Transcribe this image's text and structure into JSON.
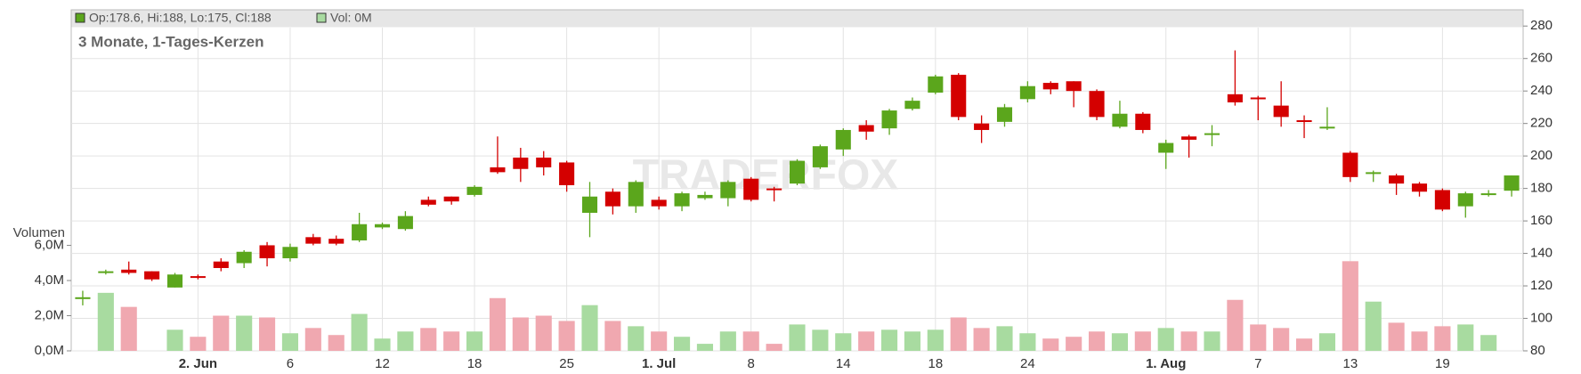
{
  "chart_data": {
    "type": "candlestick",
    "title": "3 Monate, 1-Tages-Kerzen",
    "legend_price": "Op:178.6, Hi:188, Lo:175, Cl:188",
    "legend_volume": "Vol: 0M",
    "volume_label": "Volumen",
    "watermark": "TRADERFOX",
    "up_color": "#5ba61c",
    "down_color": "#d40000",
    "volume_up_color": "#a8dba0",
    "volume_down_color": "#f0a8b0",
    "grid": true,
    "categories": [
      null,
      null,
      null,
      null,
      null,
      "2. Jun",
      null,
      null,
      null,
      "6",
      null,
      null,
      null,
      "12",
      null,
      null,
      null,
      "18",
      null,
      null,
      null,
      "25",
      null,
      null,
      null,
      "1. Jul",
      null,
      null,
      null,
      "8",
      null,
      null,
      null,
      "14",
      null,
      null,
      null,
      "18",
      null,
      null,
      null,
      "24",
      null,
      null,
      null,
      null,
      null,
      "1. Aug",
      null,
      null,
      null,
      "7",
      null,
      null,
      null,
      "13",
      null,
      null,
      null,
      "19",
      null,
      null,
      null
    ],
    "open": [
      112.5,
      128,
      130,
      129,
      119,
      126,
      135,
      134,
      145,
      137,
      150,
      149,
      148,
      156,
      155,
      173,
      175,
      176,
      193,
      199,
      199,
      196,
      165,
      178,
      169,
      173,
      169,
      174,
      174,
      186,
      180,
      183,
      193,
      204,
      219,
      217,
      229,
      239,
      250,
      220,
      221,
      235,
      245,
      246,
      240,
      218,
      226,
      202,
      212,
      213,
      238,
      236,
      231,
      222,
      217,
      202,
      189,
      188,
      183,
      179,
      169,
      176,
      178.6
    ],
    "high": [
      117,
      130,
      135,
      129,
      128,
      127,
      137,
      142,
      147,
      146,
      152,
      151,
      165,
      159,
      166,
      175,
      175,
      182,
      212,
      205,
      203,
      197,
      184,
      180,
      185,
      175,
      178,
      178,
      185,
      187,
      181,
      198,
      207,
      217,
      222,
      229,
      236,
      250,
      251,
      225,
      232,
      246,
      246,
      246,
      241,
      234,
      227,
      210,
      213,
      219,
      265,
      237,
      246,
      225,
      230,
      203,
      191,
      189,
      184,
      180,
      178,
      179,
      188
    ],
    "low": [
      108,
      127,
      127,
      123,
      119,
      124,
      129,
      131,
      132,
      135,
      145,
      145,
      147,
      155,
      154,
      169,
      170,
      175,
      189,
      184,
      188,
      178,
      150,
      164,
      165,
      167,
      166,
      173,
      169,
      172,
      172,
      182,
      192,
      200,
      210,
      213,
      228,
      238,
      222,
      208,
      218,
      233,
      238,
      230,
      222,
      217,
      214,
      192,
      199,
      206,
      231,
      222,
      218,
      211,
      216,
      184,
      184,
      176,
      175,
      166,
      162,
      175,
      175
    ],
    "close": [
      113,
      129,
      128,
      124,
      127,
      125,
      131,
      141,
      137,
      144,
      146,
      146,
      158,
      158,
      163,
      170,
      172,
      181,
      190,
      192,
      193,
      182,
      175,
      169,
      184,
      169,
      177,
      176,
      184,
      173,
      179,
      197,
      206,
      216,
      215,
      228,
      234,
      249,
      224,
      216,
      230,
      243,
      241,
      240,
      224,
      226,
      216,
      208,
      210,
      214,
      233,
      235,
      224,
      221,
      218,
      187,
      190,
      183,
      178,
      167,
      177,
      177,
      188
    ],
    "volume": [
      0,
      3.3,
      2.5,
      0,
      1.2,
      0.8,
      2.0,
      2.0,
      1.9,
      1.0,
      1.3,
      0.9,
      2.1,
      0.7,
      1.1,
      1.3,
      1.1,
      1.1,
      3.0,
      1.9,
      2.0,
      1.7,
      2.6,
      1.7,
      1.4,
      1.1,
      0.8,
      0.4,
      1.1,
      1.1,
      0.4,
      1.5,
      1.2,
      1.0,
      1.1,
      1.2,
      1.1,
      1.2,
      1.9,
      1.3,
      1.4,
      1.0,
      0.7,
      0.8,
      1.1,
      1.0,
      1.1,
      1.3,
      1.1,
      1.1,
      2.9,
      1.5,
      1.3,
      0.7,
      1.0,
      5.1,
      2.8,
      1.6,
      1.1,
      1.4,
      1.5,
      0.9,
      0
    ],
    "ylim": [
      80,
      290
    ],
    "yticks": [
      80,
      100,
      120,
      140,
      160,
      180,
      200,
      220,
      240,
      260,
      280
    ],
    "y2lim": [
      0,
      19.4
    ],
    "y2ticks": [
      {
        "value": 0,
        "label": "0,0M"
      },
      {
        "value": 2,
        "label": "2,0M"
      },
      {
        "value": 4,
        "label": "4,0M"
      },
      {
        "value": 6,
        "label": "6,0M"
      }
    ]
  }
}
